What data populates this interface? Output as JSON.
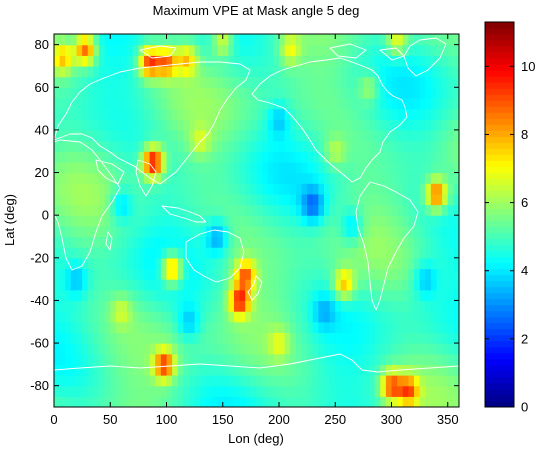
{
  "chart_data": {
    "type": "heatmap",
    "title": "Maximum VPE at Mask angle 5 deg",
    "xlabel": "Lon (deg)",
    "ylabel": "Lat (deg)",
    "xlim": [
      0,
      360
    ],
    "ylim": [
      -90,
      85
    ],
    "x_ticks": [
      0,
      50,
      100,
      150,
      200,
      250,
      300,
      350
    ],
    "y_ticks": [
      80,
      60,
      40,
      20,
      0,
      -20,
      -40,
      -60,
      -80
    ],
    "colorbar": {
      "range": [
        0,
        11.3
      ],
      "ticks": [
        0,
        2,
        4,
        6,
        8,
        10
      ],
      "colormap": "jet"
    },
    "background_level": 5,
    "hotspots": [
      {
        "lon": 28,
        "lat": 78,
        "value": 9.0
      },
      {
        "lon": 85,
        "lat": 72,
        "value": 9.3
      },
      {
        "lon": 100,
        "lat": 72,
        "value": 8.5
      },
      {
        "lon": 118,
        "lat": 73,
        "value": 7.5
      },
      {
        "lon": 8,
        "lat": 74,
        "value": 7.5
      },
      {
        "lon": 150,
        "lat": 82,
        "value": 7.0
      },
      {
        "lon": 210,
        "lat": 78,
        "value": 6.8
      },
      {
        "lon": 305,
        "lat": 82,
        "value": 7.0
      },
      {
        "lon": 88,
        "lat": 25,
        "value": 10.2
      },
      {
        "lon": 340,
        "lat": 10,
        "value": 9.0
      },
      {
        "lon": 105,
        "lat": -25,
        "value": 8.7
      },
      {
        "lon": 165,
        "lat": -40,
        "value": 9.3
      },
      {
        "lon": 170,
        "lat": -28,
        "value": 8.5
      },
      {
        "lon": 258,
        "lat": -32,
        "value": 7.8
      },
      {
        "lon": 98,
        "lat": -70,
        "value": 9.0
      },
      {
        "lon": 300,
        "lat": -80,
        "value": 8.8
      },
      {
        "lon": 315,
        "lat": -82,
        "value": 8.5
      },
      {
        "lon": 200,
        "lat": -60,
        "value": 6.3
      },
      {
        "lon": 60,
        "lat": -45,
        "value": 6.2
      },
      {
        "lon": 280,
        "lat": 60,
        "value": 6.3
      },
      {
        "lon": 130,
        "lat": 35,
        "value": 6.2
      },
      {
        "lon": 250,
        "lat": 30,
        "value": 6.2
      }
    ],
    "lowspots": [
      {
        "lon": 230,
        "lat": 5,
        "value": 3.0
      },
      {
        "lon": 145,
        "lat": -10,
        "value": 3.2
      },
      {
        "lon": 265,
        "lat": -5,
        "value": 3.5
      },
      {
        "lon": 60,
        "lat": 5,
        "value": 3.6
      },
      {
        "lon": 330,
        "lat": -30,
        "value": 3.7
      },
      {
        "lon": 200,
        "lat": 45,
        "value": 3.8
      },
      {
        "lon": 20,
        "lat": -30,
        "value": 3.8
      },
      {
        "lon": 120,
        "lat": -50,
        "value": 3.7
      },
      {
        "lon": 240,
        "lat": -45,
        "value": 3.9
      }
    ],
    "grid": false,
    "legend": "colorbar-right"
  }
}
